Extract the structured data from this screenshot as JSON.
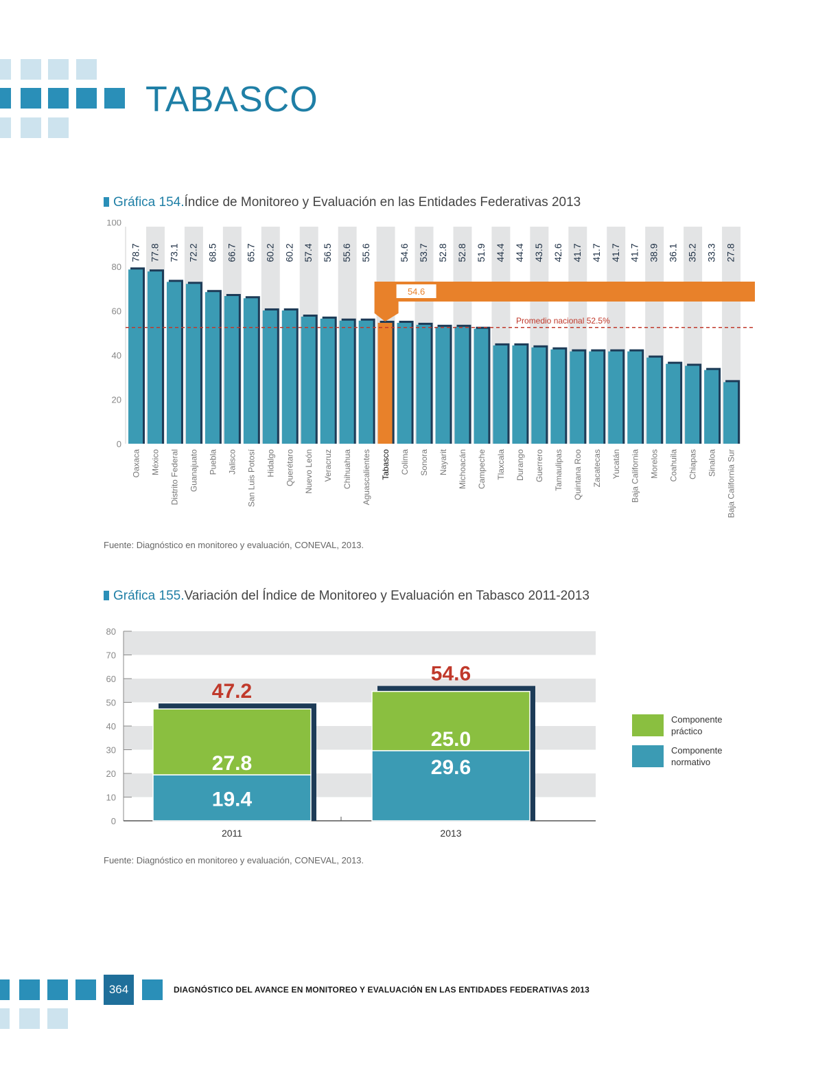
{
  "header": {
    "title": "TABASCO"
  },
  "chart154": {
    "number": "Gráfica 154.",
    "title_text": "Índice de Monitoreo y Evaluación en las Entidades Federativas 2013",
    "source": "Fuente: Diagnóstico en monitoreo y evaluación, CONEVAL, 2013.",
    "highlight_value": "54.6",
    "average_label": "Promedio nacional 52.5%"
  },
  "chart155": {
    "number": "Gráfica 155.",
    "title_text": "Variación del Índice de Monitoreo y Evaluación en Tabasco 2011-2013",
    "source": "Fuente: Diagnóstico en monitoreo y evaluación, CONEVAL, 2013.",
    "legend": {
      "practico": "Componente práctico",
      "normativo": "Componente normativo"
    }
  },
  "footer": {
    "page_number": "364",
    "text": "DIAGNÓSTICO DEL AVANCE EN MONITOREO Y EVALUACIÓN EN LAS ENTIDADES FEDERATIVAS 2013"
  },
  "colors": {
    "accent": "#2a8fb8",
    "bar": "#3b9bb4",
    "highlight": "#e8812a",
    "average": "#c0392b",
    "green": "#8abf40",
    "total_label": "#c0392b"
  },
  "chart_data": [
    {
      "type": "bar",
      "categories": [
        "Oaxaca",
        "México",
        "Distrito Federal",
        "Guanajuato",
        "Puebla",
        "Jalisco",
        "San Luis Potosí",
        "Hidalgo",
        "Querétaro",
        "Nuevo León",
        "Veracruz",
        "Chihuahua",
        "Aguascalientes",
        "Tabasco",
        "Colima",
        "Sonora",
        "Nayarit",
        "Michoacán",
        "Campeche",
        "Tlaxcala",
        "Durango",
        "Guerrero",
        "Tamaulipas",
        "Quintana Roo",
        "Zacatecas",
        "Yucatán",
        "Baja California",
        "Morelos",
        "Coahuila",
        "Chiapas",
        "Sinaloa",
        "Baja California Sur"
      ],
      "values": [
        78.7,
        77.8,
        73.1,
        72.2,
        68.5,
        66.7,
        65.7,
        60.2,
        60.2,
        57.4,
        56.5,
        55.6,
        55.6,
        54.6,
        54.6,
        53.7,
        52.8,
        52.8,
        51.9,
        44.4,
        44.4,
        43.5,
        42.6,
        41.7,
        41.7,
        41.7,
        41.7,
        38.9,
        36.1,
        35.2,
        33.3,
        27.8
      ],
      "value_labels": [
        "78.7",
        "77.8",
        "73.1",
        "72.2",
        "68.5",
        "66.7",
        "65.7",
        "60.2",
        "60.2",
        "57.4",
        "56.5",
        "55.6",
        "55.6",
        "",
        "54.6",
        "53.7",
        "52.8",
        "52.8",
        "51.9",
        "44.4",
        "44.4",
        "43.5",
        "42.6",
        "41.7",
        "41.7",
        "41.7",
        "41.7",
        "38.9",
        "36.1",
        "35.2",
        "33.3",
        "27.8"
      ],
      "highlight": "Tabasco",
      "average": 52.5,
      "ylim": [
        0,
        100
      ],
      "yticks": [
        0,
        20,
        40,
        60,
        80,
        100
      ]
    },
    {
      "type": "bar",
      "stacked": true,
      "categories": [
        "2011",
        "2013"
      ],
      "series": [
        {
          "name": "Componente normativo",
          "values": [
            19.4,
            29.6
          ]
        },
        {
          "name": "Componente práctico",
          "values": [
            27.8,
            25.0
          ]
        }
      ],
      "series_labels": [
        [
          "19.4",
          "29.6"
        ],
        [
          "27.8",
          "25.0"
        ]
      ],
      "totals": [
        "47.2",
        "54.6"
      ],
      "ylim": [
        0,
        80
      ],
      "yticks": [
        0,
        10,
        20,
        30,
        40,
        50,
        60,
        70,
        80
      ]
    }
  ]
}
